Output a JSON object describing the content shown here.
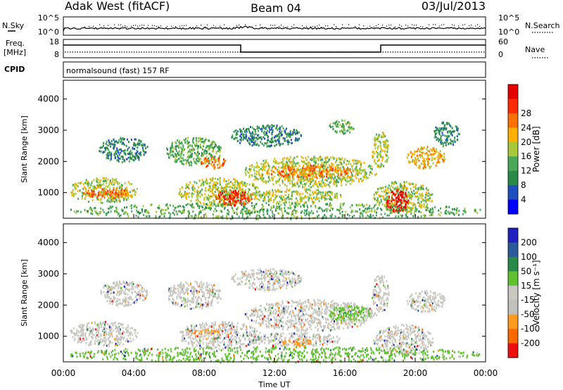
{
  "header": {
    "station": "Adak West (fitACF)",
    "beam": "Beam 04",
    "date": "03/Jul/2013"
  },
  "strip": {
    "left_top": "N.Sky",
    "left_bottom": "Freq.",
    "left_unit": "[MHz]",
    "left_cpid": "CPID",
    "right_top": "N.Search",
    "right_bottom": "Nave",
    "ns_ticks": [
      "10^5",
      "10^0"
    ],
    "freq_ticks": [
      "18",
      "8"
    ],
    "nave_ticks": [
      "60",
      "0"
    ],
    "cpid_text": "normalsound (fast) 157 RF"
  },
  "colors": {
    "power": [
      "#0000ff",
      "#1f4fbf",
      "#2a8a4a",
      "#4aa85a",
      "#a8c83a",
      "#ffb000",
      "#ff7000",
      "#ff2a00",
      "#e60000"
    ],
    "velocity": [
      "#2020c0",
      "#2a5a9a",
      "#2a8a4a",
      "#60c030",
      "#c8c8c0",
      "#c0c0bc",
      "#ff9a20",
      "#ff6a00",
      "#ee1010"
    ]
  },
  "chart_data": [
    {
      "type": "heatmap",
      "title": "Power",
      "ylabel": "Slant Range [km]",
      "xlabel": "",
      "xlim": [
        0,
        24
      ],
      "ylim": [
        180,
        4600
      ],
      "y_ticks": [
        1000,
        2000,
        3000,
        4000
      ],
      "y_tick_labels": [
        "1000",
        "2000",
        "3000",
        "4000"
      ],
      "colorbar": {
        "label": "Power [dB]",
        "ticks": [
          "4",
          "8",
          "12",
          "16",
          "20",
          "24",
          "28"
        ],
        "levels": 9
      },
      "regions": [
        {
          "t0": 0.3,
          "t1": 4.2,
          "r0": 700,
          "r1": 1500,
          "level": 4
        },
        {
          "t0": 1.0,
          "t1": 4.0,
          "r0": 850,
          "r1": 1150,
          "level": 6
        },
        {
          "t0": 2.0,
          "t1": 4.8,
          "r0": 2000,
          "r1": 2800,
          "level": 2
        },
        {
          "t0": 5.8,
          "t1": 9.0,
          "r0": 1900,
          "r1": 2800,
          "level": 3
        },
        {
          "t0": 7.8,
          "t1": 9.2,
          "r0": 1800,
          "r1": 2200,
          "level": 6
        },
        {
          "t0": 6.5,
          "t1": 11.2,
          "r0": 600,
          "r1": 1500,
          "level": 4
        },
        {
          "t0": 8.5,
          "t1": 10.8,
          "r0": 600,
          "r1": 1100,
          "level": 7
        },
        {
          "t0": 10.2,
          "t1": 17.8,
          "r0": 1200,
          "r1": 2200,
          "level": 4
        },
        {
          "t0": 11.5,
          "t1": 16.5,
          "r0": 1500,
          "r1": 1900,
          "level": 6
        },
        {
          "t0": 10.5,
          "t1": 15.8,
          "r0": 700,
          "r1": 1150,
          "level": 4
        },
        {
          "t0": 9.5,
          "t1": 13.5,
          "r0": 2500,
          "r1": 3200,
          "level": 2
        },
        {
          "t0": 15.0,
          "t1": 16.5,
          "r0": 2900,
          "r1": 3350,
          "level": 3
        },
        {
          "t0": 17.5,
          "t1": 18.5,
          "r0": 1800,
          "r1": 3000,
          "level": 4
        },
        {
          "t0": 17.6,
          "t1": 21.0,
          "r0": 400,
          "r1": 1400,
          "level": 4
        },
        {
          "t0": 18.3,
          "t1": 19.6,
          "r0": 380,
          "r1": 1150,
          "level": 8
        },
        {
          "t0": 19.5,
          "t1": 21.7,
          "r0": 1800,
          "r1": 2500,
          "level": 5
        },
        {
          "t0": 21.0,
          "t1": 22.5,
          "r0": 2500,
          "r1": 3300,
          "level": 2
        },
        {
          "t0": 0.2,
          "t1": 23.9,
          "r0": 180,
          "r1": 700,
          "level": 3
        }
      ]
    },
    {
      "type": "heatmap",
      "title": "Velocity",
      "ylabel": "Slant Range [km]",
      "xlabel": "Time UT",
      "xlim": [
        0,
        24
      ],
      "ylim": [
        180,
        4600
      ],
      "x_ticks": [
        0,
        4,
        8,
        12,
        16,
        20,
        24
      ],
      "x_tick_labels": [
        "00:00",
        "04:00",
        "08:00",
        "12:00",
        "16:00",
        "20:00",
        "00:00"
      ],
      "y_ticks": [
        1000,
        2000,
        3000,
        4000
      ],
      "y_tick_labels": [
        "1000",
        "2000",
        "3000",
        "4000"
      ],
      "colorbar": {
        "label": "Velocity [m s⁻¹]",
        "ticks": [
          "200",
          "100",
          "50",
          "15",
          "-15",
          "-50",
          "-100",
          "-200"
        ],
        "levels": 9
      },
      "regions": [
        {
          "t0": 0.3,
          "t1": 4.2,
          "r0": 700,
          "r1": 1500,
          "level": 4
        },
        {
          "t0": 2.0,
          "t1": 4.8,
          "r0": 2000,
          "r1": 2800,
          "level": 4
        },
        {
          "t0": 5.8,
          "t1": 9.0,
          "r0": 1900,
          "r1": 2800,
          "level": 4
        },
        {
          "t0": 6.5,
          "t1": 11.2,
          "r0": 600,
          "r1": 1500,
          "level": 4
        },
        {
          "t0": 10.2,
          "t1": 17.8,
          "r0": 1200,
          "r1": 2200,
          "level": 4
        },
        {
          "t0": 10.5,
          "t1": 15.8,
          "r0": 700,
          "r1": 1150,
          "level": 4
        },
        {
          "t0": 12.4,
          "t1": 14.2,
          "r0": 700,
          "r1": 950,
          "level": 6
        },
        {
          "t0": 7.0,
          "t1": 9.0,
          "r0": 1100,
          "r1": 1250,
          "level": 6
        },
        {
          "t0": 15.0,
          "t1": 17.5,
          "r0": 1500,
          "r1": 2000,
          "level": 3
        },
        {
          "t0": 9.5,
          "t1": 13.5,
          "r0": 2500,
          "r1": 3200,
          "level": 4
        },
        {
          "t0": 17.5,
          "t1": 18.5,
          "r0": 1800,
          "r1": 3000,
          "level": 4
        },
        {
          "t0": 17.6,
          "t1": 21.0,
          "r0": 400,
          "r1": 1400,
          "level": 4
        },
        {
          "t0": 19.5,
          "t1": 21.7,
          "r0": 1800,
          "r1": 2500,
          "level": 4
        },
        {
          "t0": 0.2,
          "t1": 23.9,
          "r0": 180,
          "r1": 700,
          "level": 3
        }
      ]
    }
  ]
}
